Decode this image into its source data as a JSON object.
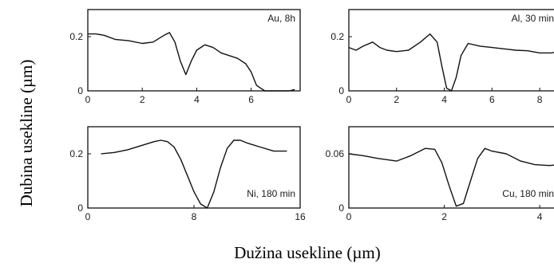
{
  "figure": {
    "ylabel": "Dubina usekline (µm)",
    "xlabel": "Dužina usekline (µm)"
  },
  "chart_data": [
    {
      "type": "line",
      "annotation": "Au, 8h",
      "xlim": [
        0,
        7.8
      ],
      "ylim": [
        0,
        0.3
      ],
      "xticks": [
        "0",
        "2",
        "4",
        "6"
      ],
      "xtick_values": [
        0,
        2,
        4,
        6
      ],
      "yticks": [
        "0",
        "0.2"
      ],
      "ytick_values": [
        0,
        0.2
      ],
      "series": [
        {
          "x": [
            0,
            0.3,
            0.6,
            1.0,
            1.5,
            2.0,
            2.4,
            2.8,
            3.0,
            3.2,
            3.4,
            3.6,
            3.8,
            4.0,
            4.3,
            4.6,
            4.9,
            5.2,
            5.5,
            5.8,
            6.0,
            6.2,
            6.5,
            7.0,
            7.4,
            7.6
          ],
          "y": [
            0.21,
            0.21,
            0.205,
            0.19,
            0.185,
            0.175,
            0.18,
            0.205,
            0.215,
            0.18,
            0.11,
            0.06,
            0.11,
            0.15,
            0.17,
            0.16,
            0.14,
            0.13,
            0.12,
            0.1,
            0.07,
            0.02,
            0.0,
            0.0,
            0.0,
            0.005
          ]
        }
      ]
    },
    {
      "type": "line",
      "annotation": "Al, 30 min",
      "xlim": [
        0,
        8.8
      ],
      "ylim": [
        0,
        0.3
      ],
      "xticks": [
        "0",
        "2",
        "4",
        "6",
        "8"
      ],
      "xtick_values": [
        0,
        2,
        4,
        6,
        8
      ],
      "yticks": [
        "0",
        "0.2"
      ],
      "ytick_values": [
        0,
        0.2
      ],
      "series": [
        {
          "x": [
            0,
            0.3,
            0.6,
            1.0,
            1.3,
            1.6,
            2.0,
            2.5,
            3.0,
            3.4,
            3.7,
            3.9,
            4.1,
            4.3,
            4.5,
            4.7,
            5.0,
            5.5,
            6.0,
            6.5,
            7.0,
            7.5,
            8.0,
            8.5,
            8.8
          ],
          "y": [
            0.16,
            0.15,
            0.165,
            0.18,
            0.16,
            0.15,
            0.145,
            0.15,
            0.18,
            0.21,
            0.18,
            0.09,
            0.01,
            0.0,
            0.05,
            0.13,
            0.175,
            0.165,
            0.16,
            0.155,
            0.15,
            0.148,
            0.14,
            0.14,
            0.145
          ]
        }
      ]
    },
    {
      "type": "line",
      "annotation": "Ni, 180 min",
      "xlim": [
        0,
        16
      ],
      "ylim": [
        0,
        0.3
      ],
      "xticks": [
        "0",
        "8",
        "16"
      ],
      "xtick_values": [
        0,
        8,
        16
      ],
      "yticks": [
        "0",
        "0.2"
      ],
      "ytick_values": [
        0,
        0.2
      ],
      "series": [
        {
          "x": [
            1,
            2,
            3,
            4,
            5,
            5.5,
            6,
            6.5,
            7,
            7.5,
            8,
            8.5,
            9,
            9.5,
            10,
            10.5,
            11,
            11.5,
            12,
            13,
            14,
            15
          ],
          "y": [
            0.2,
            0.205,
            0.215,
            0.23,
            0.245,
            0.25,
            0.245,
            0.225,
            0.18,
            0.12,
            0.06,
            0.015,
            0.0,
            0.06,
            0.15,
            0.22,
            0.25,
            0.25,
            0.24,
            0.225,
            0.21,
            0.21
          ]
        }
      ]
    },
    {
      "type": "line",
      "annotation": "Cu, 180 min",
      "xlim": [
        0,
        4.4
      ],
      "ylim": [
        0,
        0.09
      ],
      "xticks": [
        "0",
        "2",
        "4"
      ],
      "xtick_values": [
        0,
        2,
        4
      ],
      "yticks": [
        "0",
        "0.06"
      ],
      "ytick_values": [
        0,
        0.06
      ],
      "series": [
        {
          "x": [
            0,
            0.3,
            0.6,
            1.0,
            1.3,
            1.6,
            1.8,
            1.95,
            2.1,
            2.25,
            2.4,
            2.55,
            2.7,
            2.85,
            3.0,
            3.3,
            3.6,
            3.9,
            4.2,
            4.4
          ],
          "y": [
            0.06,
            0.058,
            0.055,
            0.052,
            0.058,
            0.066,
            0.065,
            0.05,
            0.025,
            0.002,
            0.005,
            0.03,
            0.055,
            0.066,
            0.063,
            0.06,
            0.052,
            0.048,
            0.047,
            0.048
          ]
        }
      ]
    }
  ]
}
